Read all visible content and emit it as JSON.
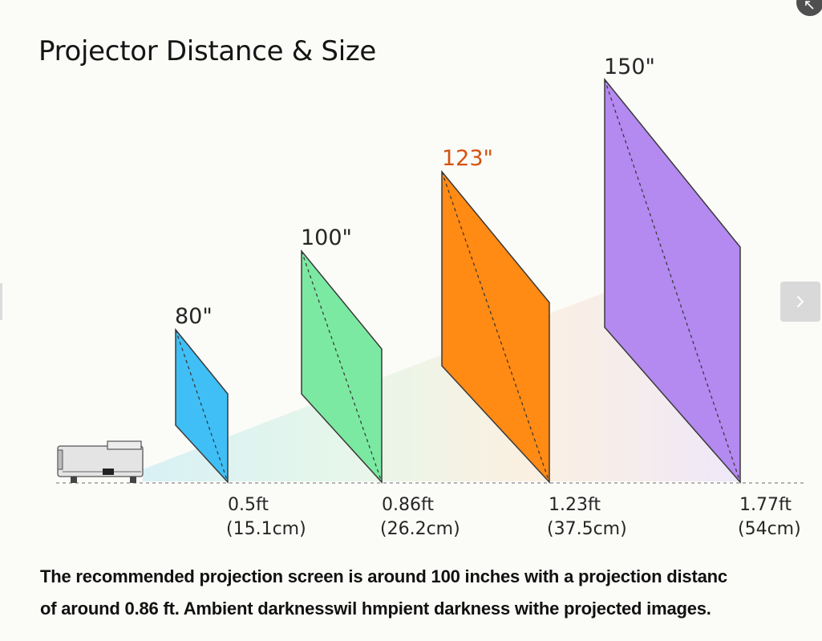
{
  "title": "Projector Distance & Size",
  "screens": [
    {
      "size_label": "80\"",
      "distance_ft": "0.5ft",
      "distance_cm": "(15.1cm)",
      "fill": "#3fbff5",
      "label_color": "#262626"
    },
    {
      "size_label": "100\"",
      "distance_ft": "0.86ft",
      "distance_cm": "(26.2cm)",
      "fill": "#7ce9a2",
      "label_color": "#262626"
    },
    {
      "size_label": "123\"",
      "distance_ft": "1.23ft",
      "distance_cm": "(37.5cm)",
      "fill": "#ff8a14",
      "label_color": "#d4520f"
    },
    {
      "size_label": "150\"",
      "distance_ft": "1.77ft",
      "distance_cm": "(54cm)",
      "fill": "#b489f0",
      "label_color": "#262626"
    }
  ],
  "caption": {
    "line1": "The recommended projection screen is around 100 inches with a projection distanc",
    "line2": "of around 0.86 ft. Ambient darknesswil hmpient darkness withe projected images."
  },
  "icons": {
    "projector": "projector-icon",
    "next": "chevron-right-icon",
    "expand": "expand-icon"
  }
}
